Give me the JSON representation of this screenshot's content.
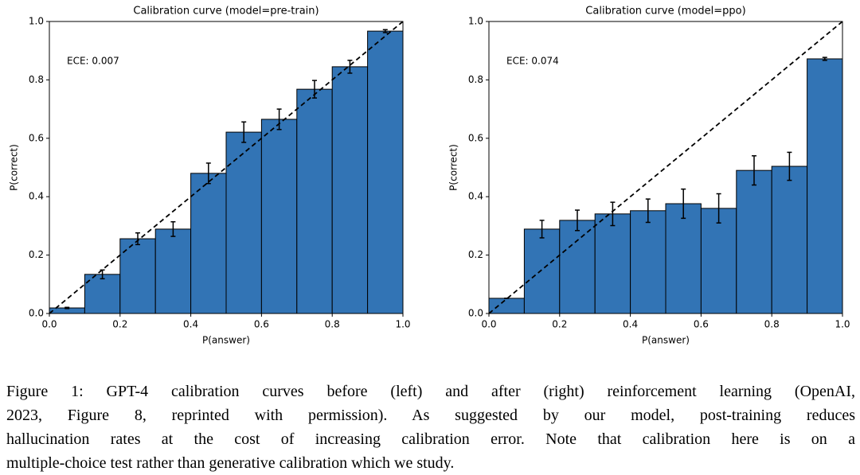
{
  "chart_data": [
    {
      "type": "histogram",
      "title": "Calibration curve (model=pre-train)",
      "annotation": "ECE: 0.007",
      "x_label": "P(answer)",
      "y_label": "P(correct)",
      "bins": [
        0,
        0.1,
        0.2,
        0.3,
        0.4,
        0.5,
        0.6,
        0.7,
        0.8,
        0.9,
        1
      ],
      "values": [
        0.019,
        0.134,
        0.256,
        0.289,
        0.48,
        0.621,
        0.665,
        0.768,
        0.845,
        0.967
      ],
      "errors": [
        0.002,
        0.015,
        0.02,
        0.025,
        0.035,
        0.035,
        0.035,
        0.03,
        0.022,
        0.005
      ],
      "color": "#3274b5",
      "xlim": [
        0,
        1
      ],
      "ylim": [
        0,
        1
      ],
      "xticks": [
        {
          "value": 0,
          "label": "0.0"
        },
        0.2,
        0.4,
        0.6,
        0.8,
        {
          "value": 1,
          "label": "1.0"
        }
      ],
      "yticks": [
        {
          "value": 0,
          "label": "0.0"
        },
        0.2,
        0.4,
        0.6,
        0.8,
        {
          "value": 1,
          "label": "1.0"
        }
      ]
    },
    {
      "type": "histogram",
      "title": "Calibration curve (model=ppo)",
      "annotation": "ECE: 0.074",
      "x_label": "P(answer)",
      "y_label": "P(correct)",
      "bins": [
        0,
        0.1,
        0.2,
        0.3,
        0.4,
        0.5,
        0.6,
        0.7,
        0.8,
        0.9,
        1
      ],
      "values": [
        0.052,
        0.289,
        0.319,
        0.341,
        0.352,
        0.376,
        0.36,
        0.49,
        0.504,
        0.872
      ],
      "errors": [
        0,
        0.03,
        0.035,
        0.04,
        0.04,
        0.05,
        0.05,
        0.05,
        0.048,
        0.005
      ],
      "color": "#3274b5",
      "xlim": [
        0,
        1
      ],
      "ylim": [
        0,
        1
      ],
      "xticks": [
        {
          "value": 0,
          "label": "0.0"
        },
        0.2,
        0.4,
        0.6,
        0.8,
        {
          "value": 1,
          "label": "1.0"
        }
      ],
      "yticks": [
        {
          "value": 0,
          "label": "0.0"
        },
        0.2,
        0.4,
        0.6,
        0.8,
        {
          "value": 1,
          "label": "1.0"
        }
      ]
    }
  ],
  "caption": [
    "Figure 1: GPT-4 calibration curves before (left) and after (right) reinforcement learning (OpenAI,",
    "2023, Figure 8, reprinted with permission).  As suggested by our model, post-training reduces",
    "hallucination rates at the cost of increasing calibration error. Note that calibration here is on a",
    "multiple-choice test rather than generative calibration which we study."
  ]
}
